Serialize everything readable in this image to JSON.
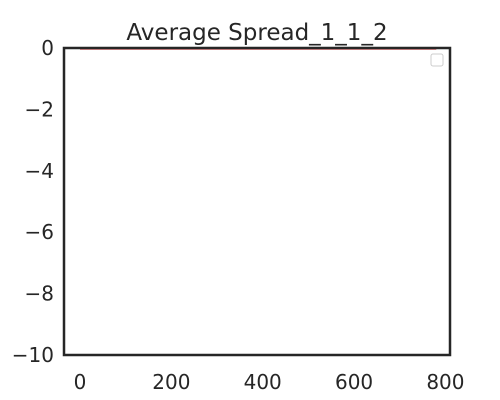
{
  "chart_data": {
    "type": "line",
    "title": "Average Spread_1_1_2",
    "xlabel": "",
    "ylabel": "",
    "xlim": [
      -35,
      810
    ],
    "ylim": [
      -10,
      0
    ],
    "x_ticks": [
      0,
      200,
      400,
      600,
      800
    ],
    "y_ticks": [
      0,
      -2,
      -4,
      -6,
      -8,
      -10
    ],
    "x_tick_labels": [
      "0",
      "200",
      "400",
      "600",
      "800"
    ],
    "y_tick_labels": [
      "0",
      "−2",
      "−4",
      "−6",
      "−8",
      "−10"
    ],
    "grid": false,
    "legend": {
      "placement": "top-right",
      "entries": []
    },
    "series": [
      {
        "color": "#d62728",
        "x": [
          0,
          780
        ],
        "y": [
          -0.02,
          -0.02
        ]
      },
      {
        "color": "#1f77b4",
        "x": [
          0,
          780
        ],
        "y": [
          0,
          0
        ]
      }
    ]
  }
}
